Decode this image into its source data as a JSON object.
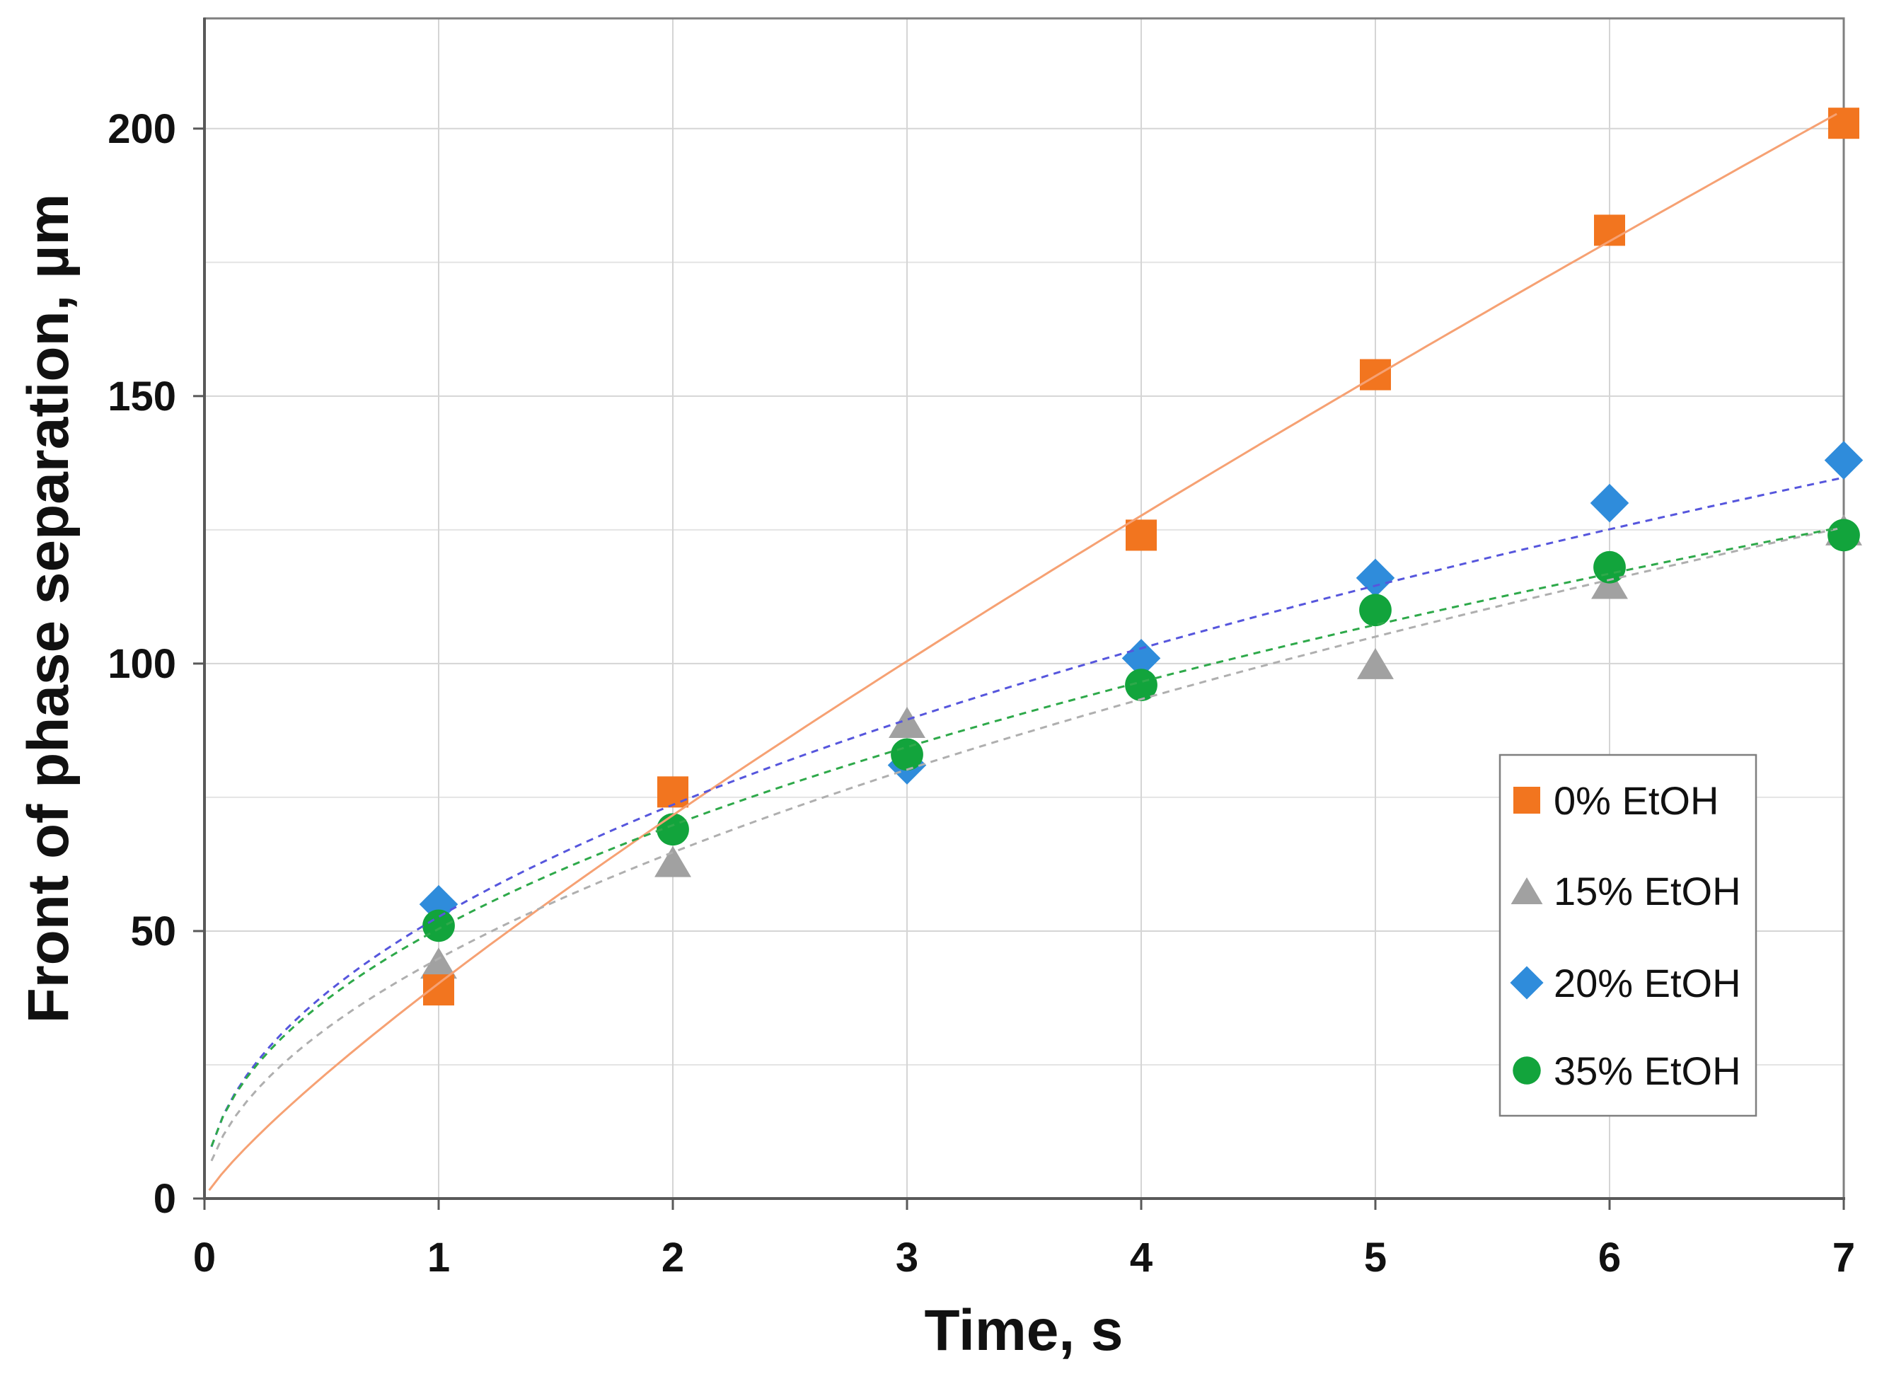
{
  "chart_data": {
    "type": "scatter",
    "title": "",
    "xlabel": "Time, s",
    "ylabel": "Front of phase separation, µm",
    "xlim": [
      0,
      7
    ],
    "ylim": [
      0,
      220.6
    ],
    "grid": true,
    "legend_position": "inside-lower-right",
    "background_color": "#FFFFFF",
    "gridline_color": "#D5D5D5",
    "minor_gridline_color": "#E4E4E4",
    "axis_color": "#595959",
    "border_color": "#7F7F7F",
    "x_axis": {
      "label": "Time, s",
      "tick_values": [
        0,
        1,
        2,
        3,
        4,
        5,
        6,
        7
      ],
      "tick_labels": [
        "0",
        "1",
        "2",
        "3",
        "4",
        "5",
        "6",
        "7"
      ],
      "gridline_values": [
        1,
        2,
        3,
        4,
        5,
        6
      ]
    },
    "y_axis": {
      "label": "Front of phase separation, µm",
      "tick_values": [
        0,
        50,
        100,
        150,
        200
      ],
      "tick_labels": [
        "0",
        "50",
        "100",
        "150",
        "200"
      ],
      "major_gridline_values": [
        50,
        100,
        150,
        200
      ],
      "minor_gridline_values": [
        25,
        75,
        125,
        175
      ]
    },
    "x": [
      1,
      2,
      3,
      4,
      5,
      6,
      7
    ],
    "series": [
      {
        "name": "0% EtOH",
        "marker": "square",
        "marker_color": "#F2751F",
        "trendline_color": "#F6A173",
        "trendline_style": "solid",
        "values": [
          39,
          76,
          null,
          124,
          154,
          181,
          201
        ]
      },
      {
        "name": "15% EtOH",
        "marker": "triangle",
        "marker_color": "#A1A1A1",
        "trendline_color": "#AFAFAF",
        "trendline_style": "dashed",
        "values": [
          44,
          63,
          89,
          null,
          100,
          115,
          125
        ]
      },
      {
        "name": "20% EtOH",
        "marker": "diamond",
        "marker_color": "#2F8CDB",
        "trendline_color": "#5656DD",
        "trendline_style": "dashed",
        "values": [
          55,
          null,
          81,
          101,
          116,
          130,
          138
        ]
      },
      {
        "name": "35% EtOH",
        "marker": "circle",
        "marker_color": "#12A43C",
        "trendline_color": "#2EA94A",
        "trendline_style": "dashed",
        "values": [
          51,
          69,
          83,
          96,
          110,
          118,
          124
        ]
      }
    ],
    "trendlines": "power-law fit per series"
  }
}
